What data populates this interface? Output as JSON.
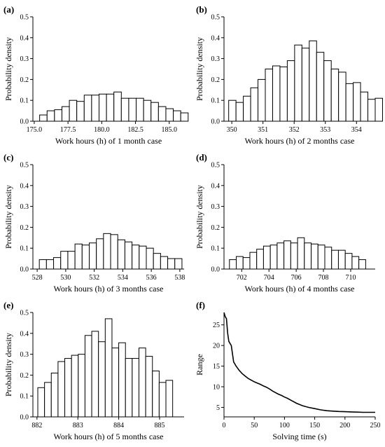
{
  "chart_data": [
    {
      "panel": "(a)",
      "type": "bar",
      "xlabel": "Work hours (h) of 1 month case",
      "ylabel": "Probability density",
      "xlim": [
        174.9,
        186.1
      ],
      "ylim": [
        0,
        0.5
      ],
      "xticks": [
        175.0,
        177.5,
        180.0,
        182.5,
        185.0
      ],
      "xtick_labels": [
        "175.0",
        "177.5",
        "180.0",
        "182.5",
        "185.0"
      ],
      "yticks": [
        0.0,
        0.1,
        0.2,
        0.3,
        0.4,
        0.5
      ],
      "ytick_labels": [
        "0.0",
        "0.1",
        "0.2",
        "0.3",
        "0.4",
        "0.5"
      ],
      "bin_start": 175.4,
      "bin_width": 0.55,
      "values": [
        0.03,
        0.05,
        0.055,
        0.07,
        0.1,
        0.095,
        0.125,
        0.125,
        0.13,
        0.13,
        0.14,
        0.11,
        0.11,
        0.11,
        0.1,
        0.09,
        0.07,
        0.06,
        0.05,
        0.04
      ]
    },
    {
      "panel": "(b)",
      "type": "bar",
      "xlabel": "Work hours (h) of 2 months case",
      "ylabel": "Probability density",
      "xlim": [
        349.75,
        354.6
      ],
      "ylim": [
        0,
        0.5
      ],
      "xticks": [
        350,
        351,
        352,
        353,
        354
      ],
      "xtick_labels": [
        "350",
        "351",
        "352",
        "353",
        "354"
      ],
      "yticks": [
        0.0,
        0.1,
        0.2,
        0.3,
        0.4,
        0.5
      ],
      "ytick_labels": [
        "0.0",
        "0.1",
        "0.2",
        "0.3",
        "0.4",
        "0.5"
      ],
      "bin_start": 349.9,
      "bin_width": 0.235,
      "values": [
        0.1,
        0.09,
        0.12,
        0.16,
        0.2,
        0.25,
        0.265,
        0.26,
        0.29,
        0.365,
        0.35,
        0.385,
        0.33,
        0.29,
        0.25,
        0.235,
        0.18,
        0.185,
        0.14,
        0.105,
        0.11
      ]
    },
    {
      "panel": "(c)",
      "type": "bar",
      "xlabel": "Work hours (h) of 3 months case",
      "ylabel": "Probability density",
      "xlim": [
        527.7,
        538.3
      ],
      "ylim": [
        0,
        0.5
      ],
      "xticks": [
        528,
        530,
        532,
        534,
        536,
        538
      ],
      "xtick_labels": [
        "528",
        "530",
        "532",
        "534",
        "536",
        "538"
      ],
      "yticks": [
        0.0,
        0.1,
        0.2,
        0.3,
        0.4,
        0.5
      ],
      "ytick_labels": [
        "0.0",
        "0.1",
        "0.2",
        "0.3",
        "0.4",
        "0.5"
      ],
      "bin_start": 528.15,
      "bin_width": 0.5,
      "values": [
        0.045,
        0.045,
        0.055,
        0.085,
        0.085,
        0.12,
        0.115,
        0.125,
        0.145,
        0.17,
        0.165,
        0.14,
        0.13,
        0.115,
        0.11,
        0.1,
        0.075,
        0.06,
        0.05,
        0.05
      ]
    },
    {
      "panel": "(d)",
      "type": "bar",
      "xlabel": "Work hours (h) of 4 months case",
      "ylabel": "Probability density",
      "xlim": [
        700.7,
        711.8
      ],
      "ylim": [
        0,
        0.5
      ],
      "xticks": [
        702,
        704,
        706,
        708,
        710
      ],
      "xtick_labels": [
        "702",
        "704",
        "706",
        "708",
        "710"
      ],
      "yticks": [
        0.0,
        0.1,
        0.2,
        0.3,
        0.4,
        0.5
      ],
      "ytick_labels": [
        "0.0",
        "0.1",
        "0.2",
        "0.3",
        "0.4",
        "0.5"
      ],
      "bin_start": 701.1,
      "bin_width": 0.5,
      "values": [
        0.045,
        0.06,
        0.055,
        0.08,
        0.095,
        0.11,
        0.115,
        0.125,
        0.135,
        0.125,
        0.15,
        0.125,
        0.12,
        0.115,
        0.105,
        0.09,
        0.09,
        0.075,
        0.06,
        0.045
      ]
    },
    {
      "panel": "(e)",
      "type": "bar",
      "xlabel": "Work hours (h) of 5 months case",
      "ylabel": "Probability density",
      "xlim": [
        881.9,
        885.6
      ],
      "ylim": [
        0,
        0.5
      ],
      "xticks": [
        882,
        883,
        884,
        885
      ],
      "xtick_labels": [
        "882",
        "883",
        "884",
        "885"
      ],
      "yticks": [
        0.0,
        0.1,
        0.2,
        0.3,
        0.4,
        0.5
      ],
      "ytick_labels": [
        "0.0",
        "0.1",
        "0.2",
        "0.3",
        "0.4",
        "0.5"
      ],
      "bin_start": 882.02,
      "bin_width": 0.165,
      "values": [
        0.14,
        0.165,
        0.21,
        0.265,
        0.28,
        0.295,
        0.3,
        0.39,
        0.41,
        0.36,
        0.47,
        0.33,
        0.355,
        0.28,
        0.28,
        0.33,
        0.29,
        0.22,
        0.165,
        0.175
      ]
    },
    {
      "panel": "(f)",
      "type": "line",
      "xlabel": "Solving time (s)",
      "ylabel": "Range",
      "xlim": [
        0,
        250
      ],
      "ylim": [
        2.7,
        28
      ],
      "xticks": [
        0,
        50,
        100,
        150,
        200,
        250
      ],
      "xtick_labels": [
        "0",
        "50",
        "100",
        "150",
        "200",
        "250"
      ],
      "yticks": [
        5,
        10,
        15,
        20,
        25
      ],
      "ytick_labels": [
        "5",
        "10",
        "15",
        "20",
        "25"
      ],
      "x": [
        0,
        2,
        4,
        6,
        8,
        10,
        12,
        14,
        16,
        18,
        20,
        25,
        30,
        35,
        40,
        45,
        50,
        55,
        60,
        65,
        70,
        75,
        80,
        85,
        90,
        95,
        100,
        105,
        110,
        120,
        130,
        140,
        150,
        160,
        170,
        180,
        190,
        200,
        210,
        220,
        230,
        240,
        250
      ],
      "y": [
        28,
        27,
        26.5,
        23,
        21,
        20.5,
        20,
        18,
        16,
        15.5,
        15,
        14,
        13.2,
        12.6,
        12,
        11.6,
        11.2,
        10.9,
        10.6,
        10.2,
        9.9,
        9.5,
        9.0,
        8.6,
        8.2,
        7.9,
        7.5,
        7.2,
        6.8,
        6.0,
        5.4,
        5.0,
        4.7,
        4.4,
        4.2,
        4.1,
        4.0,
        3.95,
        3.9,
        3.85,
        3.8,
        3.8,
        3.8
      ]
    }
  ]
}
